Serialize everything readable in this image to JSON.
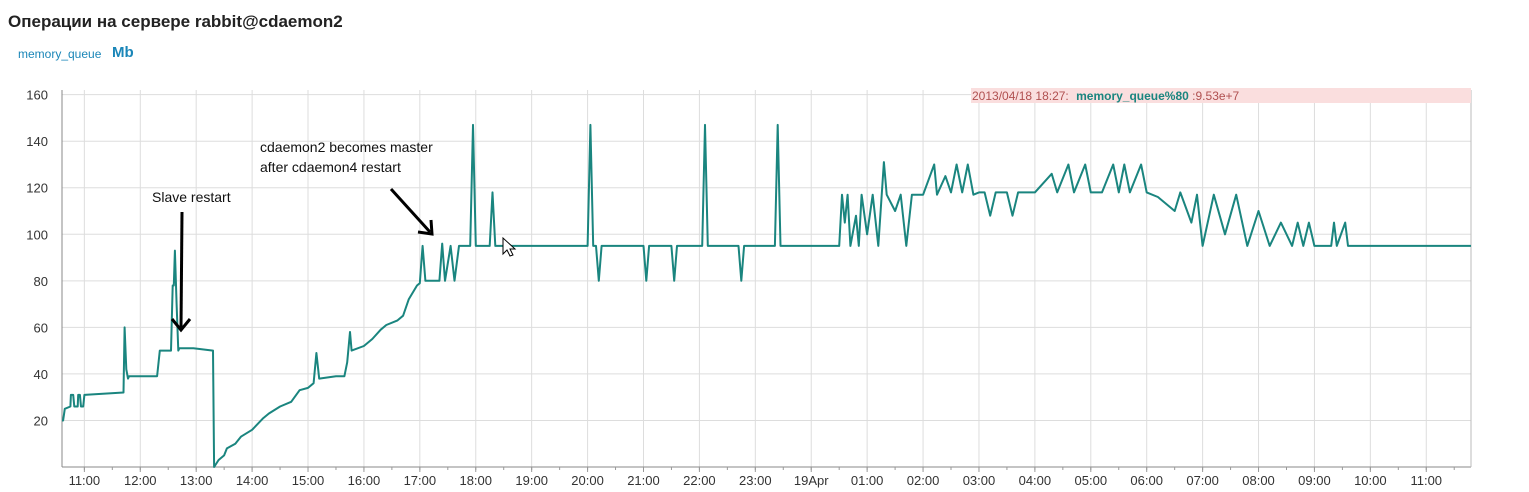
{
  "header": {
    "title": "Операции на сервере rabbit@cdaemon2",
    "metric_label": "memory_queue",
    "unit_label": "Mb"
  },
  "tooltip": {
    "time": "2013/04/18 18:27:",
    "series": "memory_queue%80",
    "value": ":9.53e+7"
  },
  "colors": {
    "series": "#1a857f",
    "grid": "#dddddd",
    "tooltip_bg": "#fadede",
    "tooltip_text": "#b05050",
    "tooltip_series": "#1a857f"
  },
  "chart_data": {
    "type": "line",
    "title": "",
    "ylabel": "",
    "xlabel": "",
    "ylim": [
      0,
      162
    ],
    "yticks": [
      20,
      40,
      60,
      80,
      100,
      120,
      140,
      160
    ],
    "grid": true,
    "x_tick_labels": [
      "11:00",
      "12:00",
      "13:00",
      "14:00",
      "15:00",
      "16:00",
      "17:00",
      "18:00",
      "19:00",
      "20:00",
      "21:00",
      "22:00",
      "23:00",
      "19Apr",
      "01:00",
      "02:00",
      "03:00",
      "04:00",
      "05:00",
      "06:00",
      "07:00",
      "08:00",
      "09:00",
      "10:00",
      "11:00"
    ],
    "x_range_hours": [
      10.6,
      35.8
    ],
    "series": [
      {
        "name": "memory_queue",
        "points": [
          [
            10.6,
            20
          ],
          [
            10.62,
            20
          ],
          [
            10.65,
            25
          ],
          [
            10.75,
            26
          ],
          [
            10.76,
            31
          ],
          [
            10.8,
            31
          ],
          [
            10.82,
            26
          ],
          [
            10.88,
            26
          ],
          [
            10.89,
            31
          ],
          [
            10.92,
            31
          ],
          [
            10.94,
            26
          ],
          [
            10.98,
            26
          ],
          [
            11.0,
            31
          ],
          [
            11.7,
            32
          ],
          [
            11.72,
            60
          ],
          [
            11.75,
            42
          ],
          [
            11.78,
            38
          ],
          [
            11.8,
            39
          ],
          [
            12.3,
            39
          ],
          [
            12.35,
            50
          ],
          [
            12.55,
            50
          ],
          [
            12.58,
            78
          ],
          [
            12.6,
            78
          ],
          [
            12.62,
            93
          ],
          [
            12.65,
            70
          ],
          [
            12.68,
            50
          ],
          [
            12.7,
            51
          ],
          [
            12.95,
            51
          ],
          [
            13.3,
            50
          ],
          [
            13.32,
            0
          ],
          [
            13.4,
            3
          ],
          [
            13.5,
            5
          ],
          [
            13.55,
            8
          ],
          [
            13.7,
            10
          ],
          [
            13.8,
            13
          ],
          [
            14.0,
            16
          ],
          [
            14.2,
            21
          ],
          [
            14.3,
            23
          ],
          [
            14.5,
            26
          ],
          [
            14.7,
            28
          ],
          [
            14.85,
            33
          ],
          [
            15.0,
            34
          ],
          [
            15.1,
            36
          ],
          [
            15.15,
            49
          ],
          [
            15.2,
            38
          ],
          [
            15.5,
            39
          ],
          [
            15.65,
            39
          ],
          [
            15.7,
            45
          ],
          [
            15.75,
            58
          ],
          [
            15.78,
            50
          ],
          [
            16.0,
            52
          ],
          [
            16.15,
            55
          ],
          [
            16.3,
            59
          ],
          [
            16.4,
            61
          ],
          [
            16.6,
            63
          ],
          [
            16.7,
            65
          ],
          [
            16.8,
            72
          ],
          [
            16.95,
            78
          ],
          [
            17.0,
            79
          ],
          [
            17.05,
            95
          ],
          [
            17.1,
            80
          ],
          [
            17.35,
            80
          ],
          [
            17.4,
            96
          ],
          [
            17.45,
            80
          ],
          [
            17.55,
            95
          ],
          [
            17.62,
            80
          ],
          [
            17.7,
            95
          ],
          [
            17.9,
            95
          ],
          [
            17.95,
            147
          ],
          [
            18.0,
            95
          ],
          [
            18.25,
            95
          ],
          [
            18.3,
            118
          ],
          [
            18.35,
            95
          ],
          [
            20.0,
            95
          ],
          [
            20.05,
            147
          ],
          [
            20.1,
            95
          ],
          [
            20.15,
            95
          ],
          [
            20.2,
            80
          ],
          [
            20.25,
            95
          ],
          [
            21.0,
            95
          ],
          [
            21.05,
            80
          ],
          [
            21.1,
            95
          ],
          [
            21.5,
            95
          ],
          [
            21.55,
            80
          ],
          [
            21.6,
            95
          ],
          [
            22.05,
            95
          ],
          [
            22.1,
            147
          ],
          [
            22.15,
            95
          ],
          [
            22.7,
            95
          ],
          [
            22.75,
            80
          ],
          [
            22.8,
            95
          ],
          [
            23.35,
            95
          ],
          [
            23.4,
            147
          ],
          [
            23.45,
            95
          ],
          [
            24.5,
            95
          ],
          [
            24.55,
            117
          ],
          [
            24.6,
            105
          ],
          [
            24.65,
            117
          ],
          [
            24.7,
            95
          ],
          [
            24.8,
            108
          ],
          [
            24.85,
            95
          ],
          [
            24.9,
            117
          ],
          [
            25.0,
            100
          ],
          [
            25.1,
            117
          ],
          [
            25.2,
            95
          ],
          [
            25.3,
            131
          ],
          [
            25.35,
            117
          ],
          [
            25.5,
            110
          ],
          [
            25.6,
            117
          ],
          [
            25.7,
            95
          ],
          [
            25.8,
            117
          ],
          [
            26.0,
            117
          ],
          [
            26.2,
            130
          ],
          [
            26.25,
            117
          ],
          [
            26.4,
            125
          ],
          [
            26.5,
            118
          ],
          [
            26.6,
            130
          ],
          [
            26.7,
            118
          ],
          [
            26.8,
            130
          ],
          [
            26.9,
            117
          ],
          [
            27.0,
            118
          ],
          [
            27.1,
            118
          ],
          [
            27.2,
            108
          ],
          [
            27.3,
            118
          ],
          [
            27.5,
            118
          ],
          [
            27.6,
            108
          ],
          [
            27.7,
            118
          ],
          [
            28.0,
            118
          ],
          [
            28.3,
            126
          ],
          [
            28.4,
            118
          ],
          [
            28.6,
            130
          ],
          [
            28.7,
            118
          ],
          [
            28.9,
            130
          ],
          [
            29.0,
            118
          ],
          [
            29.2,
            118
          ],
          [
            29.4,
            130
          ],
          [
            29.5,
            118
          ],
          [
            29.6,
            130
          ],
          [
            29.7,
            118
          ],
          [
            29.9,
            130
          ],
          [
            30.0,
            118
          ],
          [
            30.2,
            116
          ],
          [
            30.5,
            110
          ],
          [
            30.6,
            118
          ],
          [
            30.8,
            105
          ],
          [
            30.9,
            117
          ],
          [
            31.0,
            95
          ],
          [
            31.2,
            117
          ],
          [
            31.4,
            100
          ],
          [
            31.6,
            117
          ],
          [
            31.8,
            95
          ],
          [
            32.0,
            110
          ],
          [
            32.2,
            95
          ],
          [
            32.4,
            105
          ],
          [
            32.6,
            95
          ],
          [
            32.7,
            105
          ],
          [
            32.8,
            95
          ],
          [
            32.9,
            105
          ],
          [
            33.0,
            95
          ],
          [
            33.3,
            95
          ],
          [
            33.35,
            105
          ],
          [
            33.4,
            95
          ],
          [
            33.55,
            105
          ],
          [
            33.6,
            95
          ],
          [
            34.0,
            95
          ],
          [
            35.8,
            95
          ]
        ]
      }
    ],
    "annotations": [
      {
        "text": "Slave restart"
      },
      {
        "text": "cdaemon2 becomes master"
      },
      {
        "text": "after cdaemon4 restart"
      }
    ]
  }
}
